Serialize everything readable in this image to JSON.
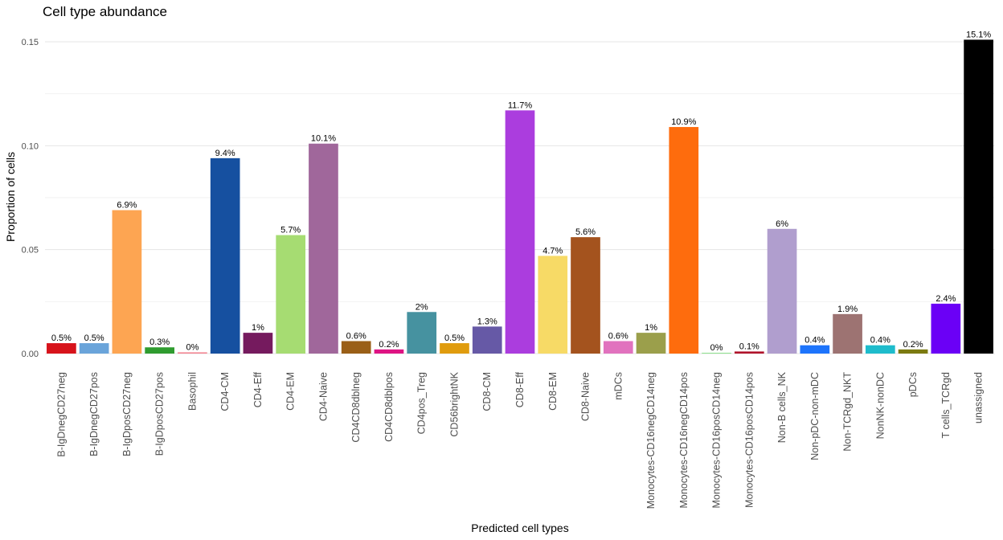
{
  "chart_data": {
    "type": "bar",
    "title": "Cell type abundance",
    "xlabel": "Predicted cell types",
    "ylabel": "Proportion of cells",
    "ylim": [
      0,
      0.15
    ],
    "yticks": [
      "0.00",
      "0.05",
      "0.10",
      "0.15"
    ],
    "grid": true,
    "categories": [
      "B-IgDnegCD27neg",
      "B-IgDnegCD27pos",
      "B-IgDposCD27neg",
      "B-IgDposCD27pos",
      "Basophil",
      "CD4-CM",
      "CD4-Eff",
      "CD4-EM",
      "CD4-Naive",
      "CD4CD8dblneg",
      "CD4CD8dblpos",
      "CD4pos_Treg",
      "CD56brightNK",
      "CD8-CM",
      "CD8-Eff",
      "CD8-EM",
      "CD8-Naive",
      "mDCs",
      "Monocytes-CD16negCD14neg",
      "Monocytes-CD16negCD14pos",
      "Monocytes-CD16posCD14neg",
      "Monocytes-CD16posCD14pos",
      "Non-B cells_NK",
      "Non-pDC-non-mDC",
      "Non-TCRgd_NKT",
      "NonNK-nonDC",
      "pDCs",
      "T cells_TCRgd",
      "unassigned"
    ],
    "values": [
      0.005,
      0.005,
      0.069,
      0.003,
      0.0006,
      0.094,
      0.01,
      0.057,
      0.101,
      0.006,
      0.002,
      0.02,
      0.005,
      0.013,
      0.117,
      0.047,
      0.056,
      0.006,
      0.01,
      0.109,
      0.0004,
      0.001,
      0.06,
      0.004,
      0.019,
      0.004,
      0.002,
      0.024,
      0.151
    ],
    "labels": [
      "0.5%",
      "0.5%",
      "6.9%",
      "0.3%",
      "0%",
      "9.4%",
      "1%",
      "5.7%",
      "10.1%",
      "0.6%",
      "0.2%",
      "2%",
      "0.5%",
      "1.3%",
      "11.7%",
      "4.7%",
      "5.6%",
      "0.6%",
      "1%",
      "10.9%",
      "0%",
      "0.1%",
      "6%",
      "0.4%",
      "1.9%",
      "0.4%",
      "0.2%",
      "2.4%",
      "15.1%"
    ],
    "colors": [
      "#D7131B",
      "#6AA4DA",
      "#FDA552",
      "#2F9C2F",
      "#F2838F",
      "#1650A0",
      "#751A5E",
      "#A6DC72",
      "#A0679B",
      "#9A5F17",
      "#DE1383",
      "#4692A0",
      "#E09C0E",
      "#6659A6",
      "#AB3DDE",
      "#F7DA66",
      "#A4531E",
      "#E172BE",
      "#9B9F4B",
      "#FE6C0D",
      "#8FE08F",
      "#B0132A",
      "#B09ECE",
      "#1D74FC",
      "#9D7372",
      "#1EBCCC",
      "#7B7A10",
      "#6B00F6",
      "#000000"
    ]
  }
}
